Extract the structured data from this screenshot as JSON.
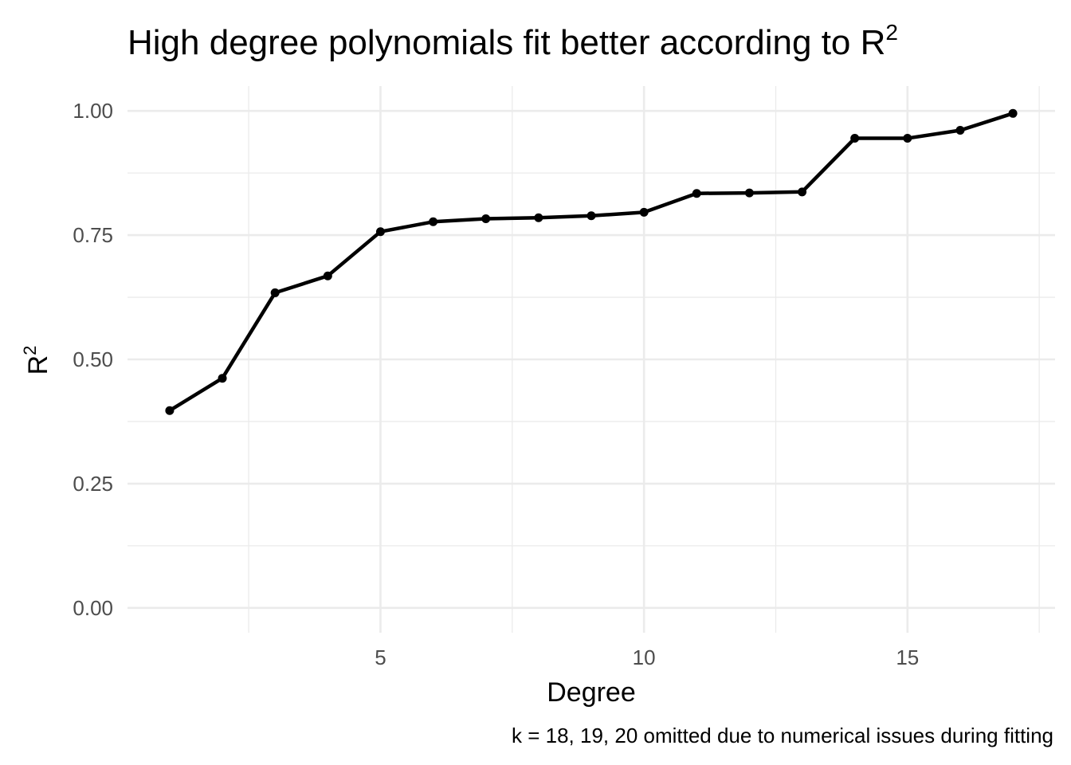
{
  "chart_data": {
    "type": "line",
    "title": "High degree polynomials fit better according to R",
    "title_superscript": "2",
    "xlabel": "Degree",
    "ylabel": "R",
    "ylabel_superscript": "2",
    "caption": "k = 18, 19, 20 omitted due to numerical issues during fitting",
    "x": [
      1,
      2,
      3,
      4,
      5,
      6,
      7,
      8,
      9,
      10,
      11,
      12,
      13,
      14,
      15,
      16,
      17
    ],
    "series": [
      {
        "values": [
          0.397,
          0.462,
          0.634,
          0.668,
          0.757,
          0.777,
          0.783,
          0.785,
          0.789,
          0.796,
          0.834,
          0.835,
          0.837,
          0.945,
          0.945,
          0.961,
          0.995
        ],
        "color": "#000000",
        "markers": true
      }
    ],
    "xlim": [
      0.2,
      17.8
    ],
    "ylim": [
      -0.05,
      1.05
    ],
    "x_ticks": [
      5,
      10,
      15
    ],
    "x_tick_labels": [
      "5",
      "10",
      "15"
    ],
    "x_minor_ticks": [
      2.5,
      7.5,
      12.5,
      17.5
    ],
    "y_ticks": [
      0,
      0.25,
      0.5,
      0.75,
      1
    ],
    "y_tick_labels": [
      "0.00",
      "0.25",
      "0.50",
      "0.75",
      "1.00"
    ],
    "y_minor_ticks": [
      0.125,
      0.375,
      0.625,
      0.875
    ],
    "grid": true,
    "theme": "minimal",
    "legend": "none"
  }
}
